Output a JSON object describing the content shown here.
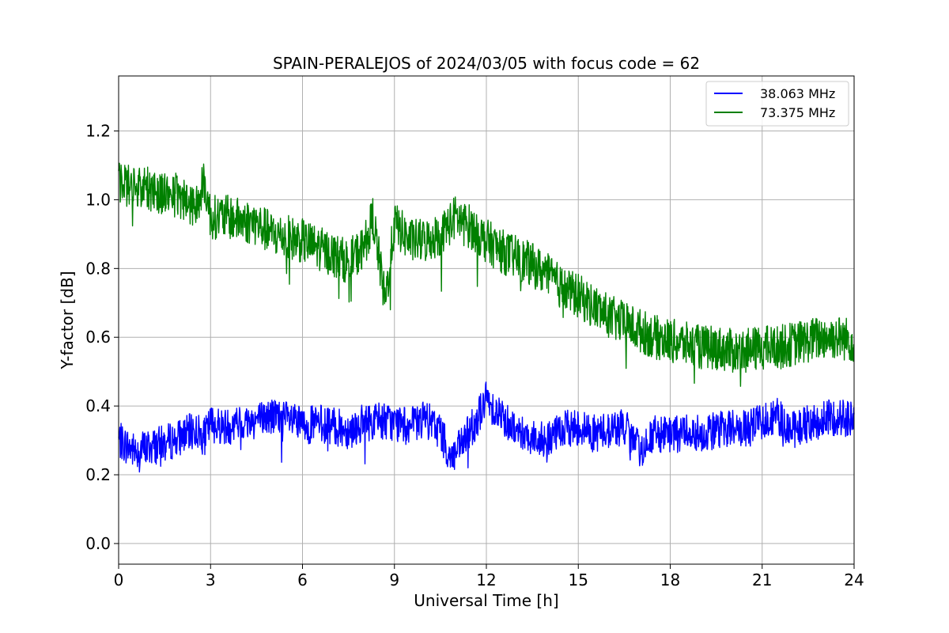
{
  "chart_data": {
    "type": "line",
    "title": "SPAIN-PERALEJOS of 2024/03/05 with focus code = 62",
    "xlabel": "Universal Time [h]",
    "ylabel": "Y-factor [dB]",
    "xlim": [
      0,
      24
    ],
    "ylim": [
      -0.06,
      1.36
    ],
    "xticks": [
      0,
      3,
      6,
      9,
      12,
      15,
      18,
      21,
      24
    ],
    "yticks": [
      0.0,
      0.2,
      0.4,
      0.6,
      0.8,
      1.0,
      1.2
    ],
    "grid": true,
    "legend_position": "top-right",
    "series": [
      {
        "name": "38.063 MHz",
        "color": "#0000ff",
        "x": [
          0,
          0.5,
          1,
          1.5,
          2,
          2.5,
          2.8,
          3,
          3.5,
          4,
          4.5,
          5,
          5.5,
          6,
          6.5,
          7,
          7.5,
          8,
          8.5,
          9,
          9.5,
          10,
          10.5,
          10.8,
          11,
          11.5,
          12,
          12.5,
          13,
          13.5,
          14,
          14.5,
          15,
          15.5,
          16,
          16.5,
          17,
          17.5,
          18,
          18.5,
          19,
          19.5,
          20,
          20.5,
          21,
          21.5,
          22,
          22.5,
          23,
          23.5,
          24
        ],
        "y": [
          0.3,
          0.27,
          0.28,
          0.29,
          0.31,
          0.33,
          0.31,
          0.35,
          0.34,
          0.35,
          0.36,
          0.37,
          0.36,
          0.34,
          0.35,
          0.34,
          0.33,
          0.35,
          0.36,
          0.35,
          0.34,
          0.36,
          0.33,
          0.25,
          0.26,
          0.33,
          0.42,
          0.37,
          0.33,
          0.31,
          0.3,
          0.33,
          0.34,
          0.32,
          0.33,
          0.34,
          0.27,
          0.32,
          0.31,
          0.33,
          0.32,
          0.33,
          0.34,
          0.33,
          0.36,
          0.37,
          0.33,
          0.35,
          0.36,
          0.37,
          0.36
        ]
      },
      {
        "name": "73.375 MHz",
        "color": "#008000",
        "x": [
          0,
          0.5,
          1,
          1.5,
          2,
          2.5,
          2.8,
          3,
          3.5,
          4,
          4.5,
          5,
          5.5,
          6,
          6.5,
          7,
          7.5,
          8,
          8.3,
          8.7,
          9,
          9.5,
          10,
          10.5,
          11,
          11.5,
          12,
          12.5,
          13,
          13.5,
          14,
          14.5,
          15,
          15.5,
          16,
          16.5,
          17,
          17.5,
          18,
          18.5,
          19,
          19.5,
          20,
          20.5,
          21,
          21.5,
          22,
          22.5,
          23,
          23.5,
          24
        ],
        "y": [
          1.05,
          1.04,
          1.03,
          1.02,
          1.01,
          0.98,
          1.05,
          0.95,
          0.95,
          0.94,
          0.93,
          0.9,
          0.89,
          0.88,
          0.86,
          0.84,
          0.82,
          0.86,
          0.95,
          0.7,
          0.93,
          0.88,
          0.88,
          0.9,
          0.95,
          0.92,
          0.88,
          0.85,
          0.83,
          0.81,
          0.78,
          0.74,
          0.72,
          0.69,
          0.66,
          0.64,
          0.62,
          0.6,
          0.59,
          0.58,
          0.57,
          0.57,
          0.56,
          0.56,
          0.57,
          0.57,
          0.58,
          0.59,
          0.6,
          0.6,
          0.59
        ]
      }
    ]
  }
}
